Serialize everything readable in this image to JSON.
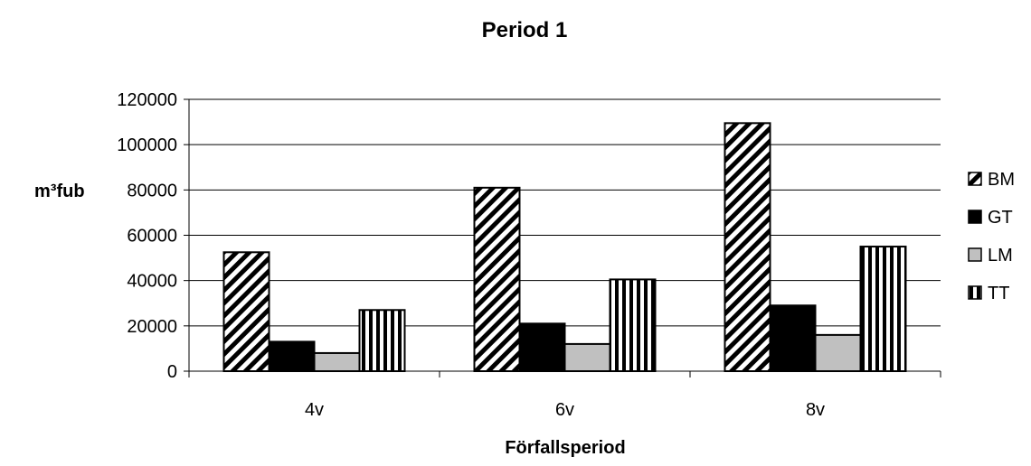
{
  "chart_data": {
    "type": "bar",
    "title": "Period 1",
    "xlabel": "Förfallsperiod",
    "ylabel": "m³fub",
    "categories": [
      "4v",
      "6v",
      "8v"
    ],
    "ylim": [
      0,
      120000
    ],
    "yticks": [
      0,
      20000,
      40000,
      60000,
      80000,
      100000,
      120000
    ],
    "grid": true,
    "legend_position": "right",
    "series": [
      {
        "name": "BM",
        "values": [
          52500,
          81000,
          109500
        ],
        "fill": "diagonal-hatch"
      },
      {
        "name": "GT",
        "values": [
          13000,
          21000,
          29000
        ],
        "color": "#000000"
      },
      {
        "name": "LM",
        "values": [
          8000,
          12000,
          16000
        ],
        "color": "#c0c0c0"
      },
      {
        "name": "TT",
        "values": [
          27000,
          40500,
          55000
        ],
        "fill": "vertical-stripes"
      }
    ]
  }
}
